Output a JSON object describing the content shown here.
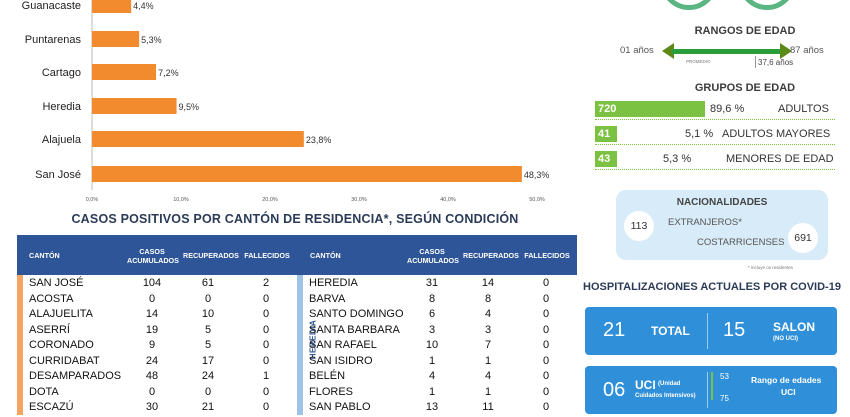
{
  "chart_data": {
    "type": "bar",
    "orientation": "horizontal",
    "categories": [
      "San José",
      "Alajuela",
      "Heredia",
      "Cartago",
      "Puntarenas",
      "Guanacaste"
    ],
    "values": [
      48.3,
      23.8,
      9.5,
      7.2,
      5.3,
      4.4
    ],
    "value_labels": [
      "48,3%",
      "23,8%",
      "9,5%",
      "7,2%",
      "5,3%",
      "4,4%"
    ],
    "x_ticks": [
      "0,0%",
      "10,0%",
      "20,0%",
      "30,0%",
      "40,0%",
      "50,0%"
    ],
    "xlim": [
      0,
      50
    ],
    "bar_color": "#f28a2e"
  },
  "table": {
    "title": "CASOS POSITIVOS POR CANTÓN DE RESIDENCIA*, SEGÚN CONDICIÓN",
    "headers": [
      "CANTÓN",
      "CASOS ACUMULADOS",
      "RECUPERADOS",
      "FALLECIDOS"
    ],
    "left_rows": [
      [
        "SAN JOSÉ",
        "104",
        "61",
        "2"
      ],
      [
        "ACOSTA",
        "0",
        "0",
        "0"
      ],
      [
        "ALAJUELITA",
        "14",
        "10",
        "0"
      ],
      [
        "ASERRÍ",
        "19",
        "5",
        "0"
      ],
      [
        "CORONADO",
        "9",
        "5",
        "0"
      ],
      [
        "CURRIDABAT",
        "24",
        "17",
        "0"
      ],
      [
        "DESAMPARADOS",
        "48",
        "24",
        "1"
      ],
      [
        "DOTA",
        "0",
        "0",
        "0"
      ],
      [
        "ESCAZÚ",
        "30",
        "21",
        "0"
      ]
    ],
    "right_group_label": "HEREDIA",
    "right_rows": [
      [
        "HEREDIA",
        "31",
        "14",
        "0"
      ],
      [
        "BARVA",
        "8",
        "8",
        "0"
      ],
      [
        "SANTO DOMINGO",
        "6",
        "4",
        "0"
      ],
      [
        "SANTA BARBARA",
        "3",
        "3",
        "0"
      ],
      [
        "SAN RAFAEL",
        "10",
        "7",
        "0"
      ],
      [
        "SAN ISIDRO",
        "1",
        "1",
        "0"
      ],
      [
        "BELÉN",
        "4",
        "4",
        "0"
      ],
      [
        "FLORES",
        "1",
        "1",
        "0"
      ],
      [
        "SAN PABLO",
        "13",
        "11",
        "0"
      ]
    ]
  },
  "edad": {
    "title": "RANGOS DE EDAD",
    "min": "01 años",
    "max": "87 años",
    "promedio_label": "PROMEDIO",
    "promedio": "37,6 años"
  },
  "grupos": {
    "title": "GRUPOS DE EDAD",
    "items": [
      {
        "count": "720",
        "pct": "89,6 %",
        "label": "ADULTOS",
        "fill": 0.896
      },
      {
        "count": "41",
        "pct": "5,1 %",
        "label": "ADULTOS MAYORES",
        "fill": 0.051
      },
      {
        "count": "43",
        "pct": "5,3 %",
        "label": "MENORES DE EDAD",
        "fill": 0.053
      }
    ]
  },
  "nacionalidades": {
    "title": "NACIONALIDADES",
    "extranjeros_count": "113",
    "extranjeros_label": "EXTRANJEROS*",
    "costarricenses_label": "COSTARRICENSES",
    "costarricenses_count": "691",
    "note": "* incluye os residentes"
  },
  "hospital": {
    "title": "HOSPITALIZACIONES ACTUALES POR COVID-19",
    "total_num": "21",
    "total_label": "TOTAL",
    "salon_num": "15",
    "salon_label": "SALON",
    "salon_sub": "(NO UCI)",
    "uci_num": "06",
    "uci_label": "UCI",
    "uci_sub1": "(Unidad",
    "uci_sub2": "Cuidados Intensivos)",
    "range_min": "53",
    "range_max": "75",
    "range_label": "Rango de edades",
    "range_sub": "UCI"
  },
  "colors": {
    "bar": "#f28a2e",
    "table_header": "#2e5597",
    "green": "#7cc242",
    "blue_box": "#2f8fd8"
  }
}
